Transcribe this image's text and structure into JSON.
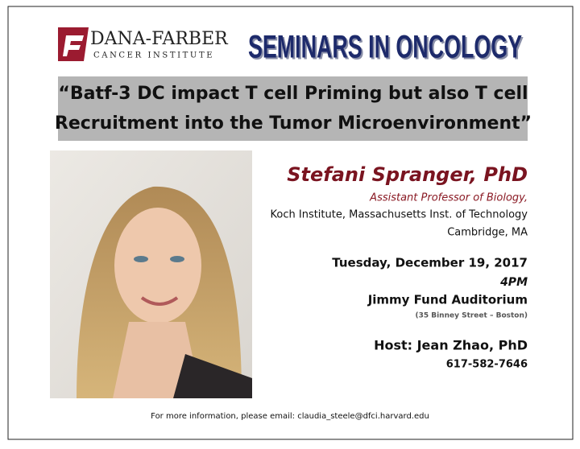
{
  "header": {
    "logo_name": "DANA-FARBER",
    "logo_subtitle": "CANCER INSTITUTE",
    "series_title": "SEMINARS IN ONCOLOGY"
  },
  "talk": {
    "title_lines": [
      "“Batf-3 DC impact T cell Priming but also T cell",
      "Recruitment into the Tumor Microenvironment”"
    ]
  },
  "speaker": {
    "name": "Stefani Spranger, PhD",
    "position": "Assistant Professor of Biology,",
    "affiliation": "Koch Institute, Massachusetts Inst. of Technology",
    "city": "Cambridge, MA"
  },
  "event": {
    "date": "Tuesday, December 19, 2017",
    "time": "4PM",
    "location": "Jimmy Fund Auditorium",
    "address": "(35 Binney Street – Boston)"
  },
  "host": {
    "name": "Host: Jean Zhao, PhD",
    "phone": "617-582-7646"
  },
  "footer": {
    "contact": "For more information, please email: claudia_steele@dfci.harvard.edu"
  }
}
